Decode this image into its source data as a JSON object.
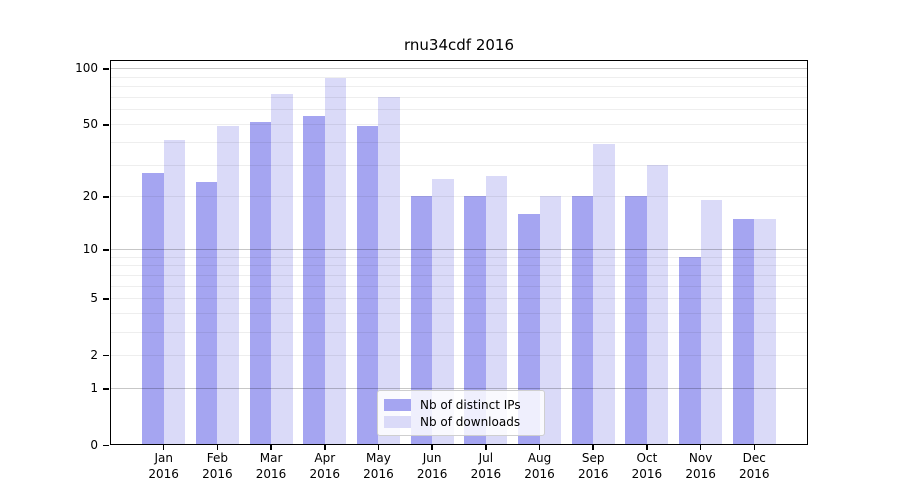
{
  "title": "rnu34cdf 2016",
  "chart_data": {
    "type": "bar",
    "title": "rnu34cdf 2016",
    "categories": [
      "Jan",
      "Feb",
      "Mar",
      "Apr",
      "May",
      "Jun",
      "Jul",
      "Aug",
      "Sep",
      "Oct",
      "Nov",
      "Dec"
    ],
    "x_year_label": "2016",
    "series": [
      {
        "name": "Nb of distinct IPs",
        "color": "#a5a5f1",
        "values": [
          27,
          24,
          51,
          55,
          49,
          20,
          20,
          16,
          20,
          20,
          9,
          15
        ]
      },
      {
        "name": "Nb of downloads",
        "color": "#dadaf8",
        "values": [
          41,
          49,
          73,
          89,
          70,
          25,
          26,
          20,
          39,
          30,
          19,
          15
        ]
      }
    ],
    "yscale": "log1p",
    "ylim": [
      0,
      111
    ],
    "yticks": [
      100,
      50,
      20,
      10,
      5,
      2,
      1,
      0
    ],
    "gridlines": {
      "minor": [
        2,
        3,
        4,
        5,
        6,
        7,
        8,
        9,
        20,
        30,
        40,
        50,
        60,
        70,
        80,
        90
      ],
      "major": [
        1,
        10,
        100
      ]
    },
    "grid": true,
    "legend_position": "lower center"
  }
}
